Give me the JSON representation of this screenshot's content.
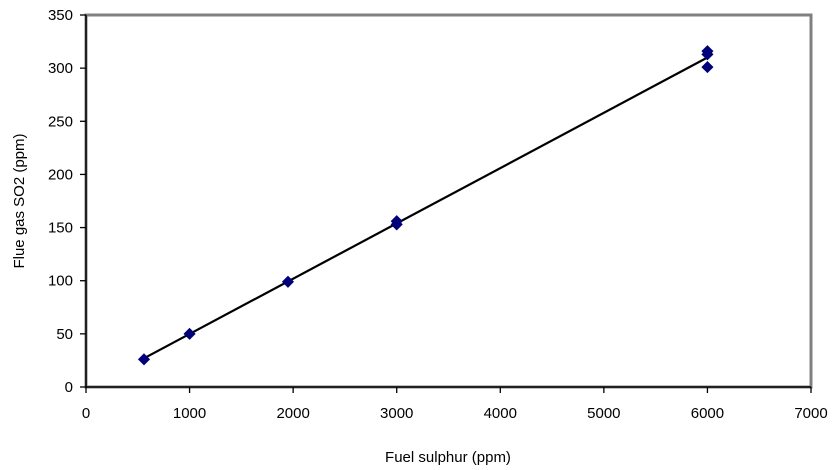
{
  "chart_data": {
    "type": "scatter",
    "title": "",
    "xlabel": "Fuel sulphur (ppm)",
    "ylabel": "Flue gas SO2 (ppm)",
    "xlim": [
      0,
      7000
    ],
    "ylim": [
      0,
      350
    ],
    "xticks": [
      0,
      1000,
      2000,
      3000,
      4000,
      5000,
      6000,
      7000
    ],
    "yticks": [
      0,
      50,
      100,
      150,
      200,
      250,
      300,
      350
    ],
    "xtick_labels": [
      "0",
      "1000",
      "2000",
      "3000",
      "4000",
      "5000",
      "6000",
      "7000"
    ],
    "ytick_labels": [
      "0",
      "50",
      "100",
      "150",
      "200",
      "250",
      "300",
      "350"
    ],
    "grid": false,
    "legend": "none",
    "marker": "diamond",
    "colors": {
      "marker": "#00007A",
      "line": "#000000",
      "plot_border": "#808080",
      "axis": "#000000"
    },
    "points": [
      {
        "x": 560,
        "y": 26
      },
      {
        "x": 1000,
        "y": 50
      },
      {
        "x": 1950,
        "y": 99
      },
      {
        "x": 3000,
        "y": 156
      },
      {
        "x": 3000,
        "y": 153
      },
      {
        "x": 6000,
        "y": 316
      },
      {
        "x": 6000,
        "y": 313
      },
      {
        "x": 6000,
        "y": 301
      }
    ],
    "trendline": {
      "type": "linear",
      "from": {
        "x": 560,
        "y": 27
      },
      "to": {
        "x": 6000,
        "y": 310
      }
    }
  }
}
